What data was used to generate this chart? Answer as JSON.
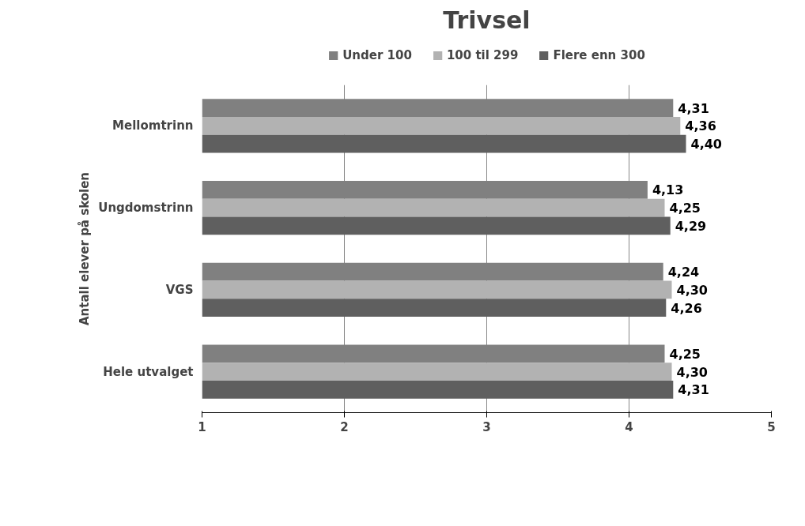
{
  "chart_data": {
    "type": "bar",
    "orientation": "horizontal",
    "title": "Trivsel",
    "ylabel": "Antall elever på skolen",
    "categories": [
      "Mellomtrinn",
      "Ungdomstrinn",
      "VGS",
      "Hele utvalget"
    ],
    "series": [
      {
        "name": "Under 100",
        "color": "#808080",
        "values": [
          4.31,
          4.13,
          4.24,
          4.25
        ],
        "value_labels": [
          "4,31",
          "4,13",
          "4,24",
          "4,25"
        ]
      },
      {
        "name": "100 til 299",
        "color": "#b2b2b2",
        "values": [
          4.36,
          4.25,
          4.3,
          4.3
        ],
        "value_labels": [
          "4,36",
          "4,25",
          "4,30",
          "4,30"
        ]
      },
      {
        "name": "Flere enn 300",
        "color": "#5f5f5f",
        "values": [
          4.4,
          4.29,
          4.26,
          4.31
        ],
        "value_labels": [
          "4,40",
          "4,29",
          "4,26",
          "4,31"
        ]
      }
    ],
    "xlim": [
      1,
      5
    ],
    "xticks": [
      1,
      2,
      3,
      4,
      5
    ],
    "grid": "x",
    "legend": "top"
  }
}
